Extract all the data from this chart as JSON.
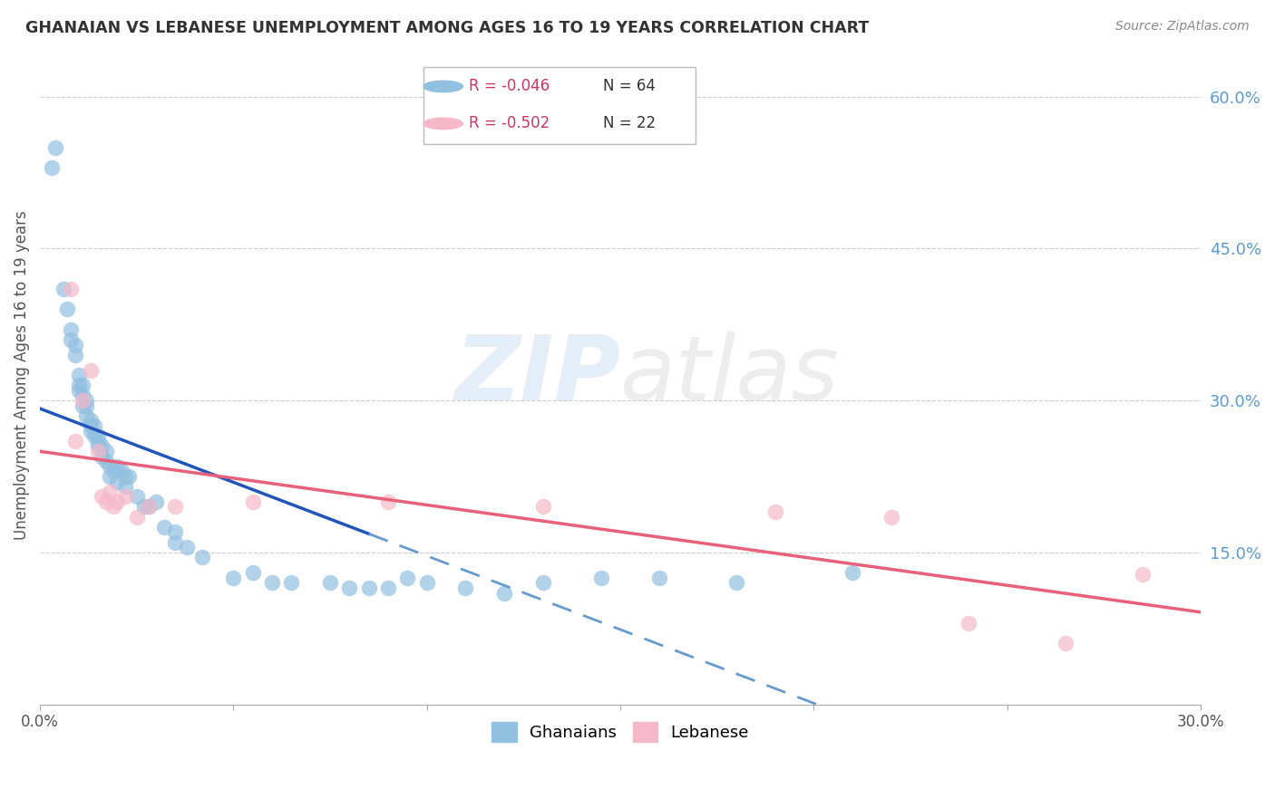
{
  "title": "GHANAIAN VS LEBANESE UNEMPLOYMENT AMONG AGES 16 TO 19 YEARS CORRELATION CHART",
  "source": "Source: ZipAtlas.com",
  "ylabel": "Unemployment Among Ages 16 to 19 years",
  "xlim": [
    0.0,
    0.3
  ],
  "ylim": [
    0.0,
    0.65
  ],
  "yticks_right": [
    0.15,
    0.3,
    0.45,
    0.6
  ],
  "ytick_labels_right": [
    "15.0%",
    "30.0%",
    "45.0%",
    "60.0%"
  ],
  "xticks": [
    0.0,
    0.05,
    0.1,
    0.15,
    0.2,
    0.25,
    0.3
  ],
  "xtick_labels": [
    "0.0%",
    "",
    "",
    "",
    "",
    "",
    "30.0%"
  ],
  "ghanaian_color": "#92c0e0",
  "lebanese_color": "#f5b8c8",
  "regression_ghanaian_solid_color": "#2255bb",
  "regression_ghanaian_dash_color": "#6699cc",
  "regression_lebanese_color": "#e8607a",
  "background_color": "#ffffff",
  "legend_R_ghanaian": "R = -0.046",
  "legend_N_ghanaian": "N = 64",
  "legend_R_lebanese": "R = -0.502",
  "legend_N_lebanese": "N = 22",
  "ghanaian_x": [
    0.003,
    0.004,
    0.006,
    0.007,
    0.008,
    0.008,
    0.009,
    0.009,
    0.01,
    0.01,
    0.01,
    0.011,
    0.011,
    0.011,
    0.012,
    0.012,
    0.012,
    0.013,
    0.013,
    0.013,
    0.014,
    0.014,
    0.015,
    0.015,
    0.015,
    0.016,
    0.016,
    0.017,
    0.017,
    0.018,
    0.018,
    0.019,
    0.02,
    0.02,
    0.021,
    0.022,
    0.022,
    0.023,
    0.025,
    0.027,
    0.028,
    0.03,
    0.032,
    0.035,
    0.035,
    0.038,
    0.042,
    0.05,
    0.055,
    0.06,
    0.065,
    0.075,
    0.08,
    0.085,
    0.09,
    0.095,
    0.1,
    0.11,
    0.12,
    0.13,
    0.145,
    0.16,
    0.18,
    0.21
  ],
  "ghanaian_y": [
    0.53,
    0.55,
    0.41,
    0.39,
    0.36,
    0.37,
    0.355,
    0.345,
    0.31,
    0.315,
    0.325,
    0.295,
    0.305,
    0.315,
    0.285,
    0.295,
    0.3,
    0.275,
    0.27,
    0.28,
    0.265,
    0.275,
    0.26,
    0.255,
    0.265,
    0.245,
    0.255,
    0.24,
    0.25,
    0.235,
    0.225,
    0.23,
    0.22,
    0.235,
    0.23,
    0.215,
    0.225,
    0.225,
    0.205,
    0.195,
    0.195,
    0.2,
    0.175,
    0.17,
    0.16,
    0.155,
    0.145,
    0.125,
    0.13,
    0.12,
    0.12,
    0.12,
    0.115,
    0.115,
    0.115,
    0.125,
    0.12,
    0.115,
    0.11,
    0.12,
    0.125,
    0.125,
    0.12,
    0.13
  ],
  "lebanese_x": [
    0.008,
    0.009,
    0.011,
    0.013,
    0.015,
    0.016,
    0.017,
    0.018,
    0.019,
    0.02,
    0.022,
    0.025,
    0.028,
    0.035,
    0.055,
    0.09,
    0.13,
    0.19,
    0.22,
    0.24,
    0.265,
    0.285
  ],
  "lebanese_y": [
    0.41,
    0.26,
    0.3,
    0.33,
    0.25,
    0.205,
    0.2,
    0.21,
    0.195,
    0.2,
    0.205,
    0.185,
    0.195,
    0.195,
    0.2,
    0.2,
    0.195,
    0.19,
    0.185,
    0.08,
    0.06,
    0.128
  ],
  "solid_line_x_end": 0.085,
  "reg_ghanaian_slope": -0.35,
  "reg_ghanaian_intercept": 0.248,
  "reg_lebanese_slope": -0.72,
  "reg_lebanese_intercept": 0.255
}
